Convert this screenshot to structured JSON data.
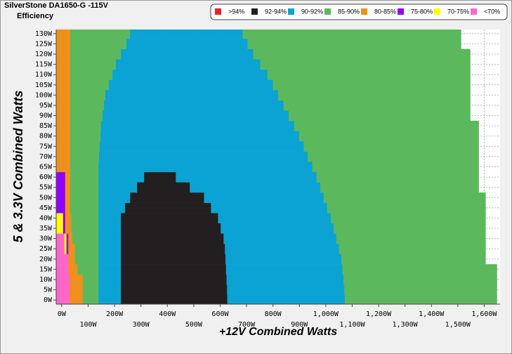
{
  "chart_data": {
    "type": "region-map",
    "title": "SilverStone DA1650-G -115V",
    "subtitle": "Efficiency",
    "x_label": "+12V Combined Watts",
    "y_label": "5 & 3.3V Combined Watts",
    "xlim": [
      -21,
      1660
    ],
    "ylim": [
      -2,
      132
    ],
    "grid": true,
    "legend": "top-right",
    "xticks": [
      {
        "value": 0,
        "label": "0W"
      },
      {
        "value": 100,
        "label": "100W"
      },
      {
        "value": 200,
        "label": "200W"
      },
      {
        "value": 300,
        "label": "300W"
      },
      {
        "value": 400,
        "label": "400W"
      },
      {
        "value": 500,
        "label": "500W"
      },
      {
        "value": 600,
        "label": "600W"
      },
      {
        "value": 700,
        "label": "700W"
      },
      {
        "value": 800,
        "label": "800W"
      },
      {
        "value": 900,
        "label": "900W"
      },
      {
        "value": 1000,
        "label": "1,000W"
      },
      {
        "value": 1100,
        "label": "1,100W"
      },
      {
        "value": 1200,
        "label": "1,200W"
      },
      {
        "value": 1300,
        "label": "1,300W"
      },
      {
        "value": 1400,
        "label": "1,400W"
      },
      {
        "value": 1500,
        "label": "1,500W"
      },
      {
        "value": 1600,
        "label": "1,600W"
      }
    ],
    "yticks": [
      {
        "value": 0,
        "label": "0W"
      },
      {
        "value": 5,
        "label": "5W"
      },
      {
        "value": 10,
        "label": "10W"
      },
      {
        "value": 15,
        "label": "15W"
      },
      {
        "value": 20,
        "label": "20W"
      },
      {
        "value": 25,
        "label": "25W"
      },
      {
        "value": 30,
        "label": "30W"
      },
      {
        "value": 35,
        "label": "35W"
      },
      {
        "value": 40,
        "label": "40W"
      },
      {
        "value": 45,
        "label": "45W"
      },
      {
        "value": 50,
        "label": "50W"
      },
      {
        "value": 55,
        "label": "55W"
      },
      {
        "value": 60,
        "label": "60W"
      },
      {
        "value": 65,
        "label": "65W"
      },
      {
        "value": 70,
        "label": "70W"
      },
      {
        "value": 75,
        "label": "75W"
      },
      {
        "value": 80,
        "label": "80W"
      },
      {
        "value": 85,
        "label": "85W"
      },
      {
        "value": 90,
        "label": "90W"
      },
      {
        "value": 95,
        "label": "95W"
      },
      {
        "value": 100,
        "label": "100W"
      },
      {
        "value": 105,
        "label": "105W"
      },
      {
        "value": 110,
        "label": "110W"
      },
      {
        "value": 115,
        "label": "115W"
      },
      {
        "value": 120,
        "label": "120W"
      },
      {
        "value": 125,
        "label": "125W"
      },
      {
        "value": 130,
        "label": "130W"
      }
    ],
    "series": [
      {
        "name": ">94%",
        "color": "#e8202a"
      },
      {
        "name": "92-94%",
        "color": "#231f20"
      },
      {
        "name": "90-92%",
        "color": "#0ba3d3"
      },
      {
        "name": "85-90%",
        "color": "#5cb85c"
      },
      {
        "name": "80-85%",
        "color": "#ef8f1c"
      },
      {
        "name": "75-80%",
        "color": "#8f00ff"
      },
      {
        "name": "70-75%",
        "color": "#ffff00"
      },
      {
        "name": "<70%",
        "color": "#ff66cc"
      }
    ],
    "rows": [
      {
        "y": 0,
        "bounds": [
          -21,
          30,
          80,
          139,
          224,
          627,
          1072,
          1648
        ],
        "classes": [
          7,
          4,
          3,
          2,
          1,
          2,
          3
        ]
      },
      {
        "y": 5,
        "bounds": [
          -21,
          30,
          80,
          139,
          224,
          626,
          1070,
          1648
        ],
        "classes": [
          7,
          4,
          3,
          2,
          1,
          2,
          3
        ]
      },
      {
        "y": 10,
        "bounds": [
          -21,
          30,
          80,
          139,
          224,
          624,
          1067,
          1648
        ],
        "classes": [
          7,
          4,
          3,
          2,
          1,
          2,
          3
        ]
      },
      {
        "y": 15,
        "bounds": [
          -21,
          25,
          60,
          139,
          224,
          622,
          1063,
          1648
        ],
        "classes": [
          7,
          4,
          3,
          2,
          1,
          2,
          3
        ]
      },
      {
        "y": 20,
        "bounds": [
          -21,
          25,
          50,
          139,
          224,
          620,
          1059,
          1605
        ],
        "classes": [
          7,
          4,
          3,
          2,
          1,
          2,
          3
        ]
      },
      {
        "y": 25,
        "bounds": [
          -21,
          10,
          18,
          25,
          50,
          139,
          224,
          618,
          1050,
          1605
        ],
        "classes": [
          7,
          6,
          5,
          4,
          3,
          2,
          1,
          2,
          3
        ]
      },
      {
        "y": 30,
        "bounds": [
          -21,
          10,
          18,
          25,
          40,
          139,
          224,
          613,
          1040,
          1605
        ],
        "classes": [
          7,
          6,
          5,
          4,
          3,
          2,
          1,
          2,
          3
        ]
      },
      {
        "y": 35,
        "bounds": [
          -21,
          5,
          13,
          35,
          139,
          224,
          602,
          1030,
          1605
        ],
        "classes": [
          6,
          5,
          4,
          3,
          2,
          1,
          2,
          3
        ]
      },
      {
        "y": 40,
        "bounds": [
          -21,
          5,
          13,
          35,
          139,
          224,
          592,
          1019,
          1605
        ],
        "classes": [
          6,
          5,
          4,
          3,
          2,
          1,
          2,
          3
        ]
      },
      {
        "y": 45,
        "bounds": [
          -21,
          13,
          32,
          139,
          240,
          565,
          1005,
          1605
        ],
        "classes": [
          5,
          4,
          3,
          2,
          1,
          2,
          3
        ]
      },
      {
        "y": 50,
        "bounds": [
          -21,
          13,
          32,
          139,
          259,
          539,
          992,
          1605
        ],
        "classes": [
          5,
          4,
          3,
          2,
          1,
          2,
          3
        ]
      },
      {
        "y": 55,
        "bounds": [
          -21,
          13,
          32,
          139,
          285,
          485,
          979,
          1579
        ],
        "classes": [
          5,
          4,
          3,
          2,
          1,
          2,
          3
        ]
      },
      {
        "y": 60,
        "bounds": [
          -21,
          13,
          32,
          139,
          312,
          432,
          965,
          1579
        ],
        "classes": [
          5,
          4,
          3,
          2,
          1,
          2,
          3
        ]
      },
      {
        "y": 65,
        "bounds": [
          -21,
          32,
          139,
          949,
          1579
        ],
        "classes": [
          4,
          3,
          2,
          3
        ]
      },
      {
        "y": 70,
        "bounds": [
          -21,
          32,
          141,
          931,
          1579
        ],
        "classes": [
          4,
          3,
          2,
          3
        ]
      },
      {
        "y": 75,
        "bounds": [
          -21,
          32,
          144,
          917,
          1579
        ],
        "classes": [
          4,
          3,
          2,
          3
        ]
      },
      {
        "y": 80,
        "bounds": [
          -21,
          32,
          147,
          899,
          1579
        ],
        "classes": [
          4,
          3,
          2,
          3
        ]
      },
      {
        "y": 85,
        "bounds": [
          -21,
          32,
          149,
          880,
          1579
        ],
        "classes": [
          4,
          3,
          2,
          3
        ]
      },
      {
        "y": 90,
        "bounds": [
          -21,
          32,
          155,
          859,
          1547
        ],
        "classes": [
          4,
          3,
          2,
          3
        ]
      },
      {
        "y": 95,
        "bounds": [
          -21,
          32,
          160,
          840,
          1547
        ],
        "classes": [
          4,
          3,
          2,
          3
        ]
      },
      {
        "y": 100,
        "bounds": [
          -21,
          32,
          165,
          819,
          1547
        ],
        "classes": [
          4,
          3,
          2,
          3
        ]
      },
      {
        "y": 105,
        "bounds": [
          -21,
          32,
          179,
          800,
          1547
        ],
        "classes": [
          4,
          3,
          2,
          3
        ]
      },
      {
        "y": 110,
        "bounds": [
          -21,
          32,
          192,
          779,
          1547
        ],
        "classes": [
          4,
          3,
          2,
          3
        ]
      },
      {
        "y": 115,
        "bounds": [
          -21,
          32,
          205,
          752,
          1547
        ],
        "classes": [
          4,
          3,
          2,
          3
        ]
      },
      {
        "y": 120,
        "bounds": [
          -21,
          32,
          224,
          725,
          1547
        ],
        "classes": [
          4,
          3,
          2,
          3
        ]
      },
      {
        "y": 125,
        "bounds": [
          -21,
          32,
          245,
          704,
          1512
        ],
        "classes": [
          4,
          3,
          2,
          3
        ]
      },
      {
        "y": 130,
        "bounds": [
          -21,
          32,
          259,
          685,
          1512
        ],
        "classes": [
          4,
          3,
          2,
          3
        ]
      }
    ]
  }
}
